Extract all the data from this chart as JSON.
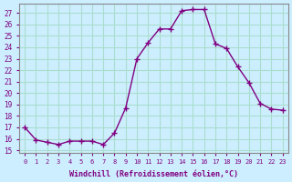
{
  "x": [
    0,
    1,
    2,
    3,
    4,
    5,
    6,
    7,
    8,
    9,
    10,
    11,
    12,
    13,
    14,
    15,
    16,
    17,
    18,
    19,
    20,
    21,
    22,
    23
  ],
  "y": [
    17.0,
    15.9,
    15.7,
    15.5,
    15.8,
    15.8,
    15.8,
    15.5,
    16.5,
    18.7,
    23.0,
    24.4,
    25.6,
    25.6,
    27.2,
    27.3,
    27.3,
    24.3,
    23.9,
    22.3,
    20.9,
    19.1,
    18.6,
    18.5
  ],
  "line_color": "#800080",
  "marker": "+",
  "marker_size": 5,
  "bg_color": "#cceeff",
  "grid_color": "#aaddcc",
  "xlabel": "Windchill (Refroidissement éolien,°C)",
  "ylabel_ticks": [
    15,
    16,
    17,
    18,
    19,
    20,
    21,
    22,
    23,
    24,
    25,
    26,
    27
  ],
  "xlim": [
    -0.5,
    23.5
  ],
  "ylim": [
    14.8,
    27.8
  ],
  "label_color": "#800080",
  "font": "monospace"
}
